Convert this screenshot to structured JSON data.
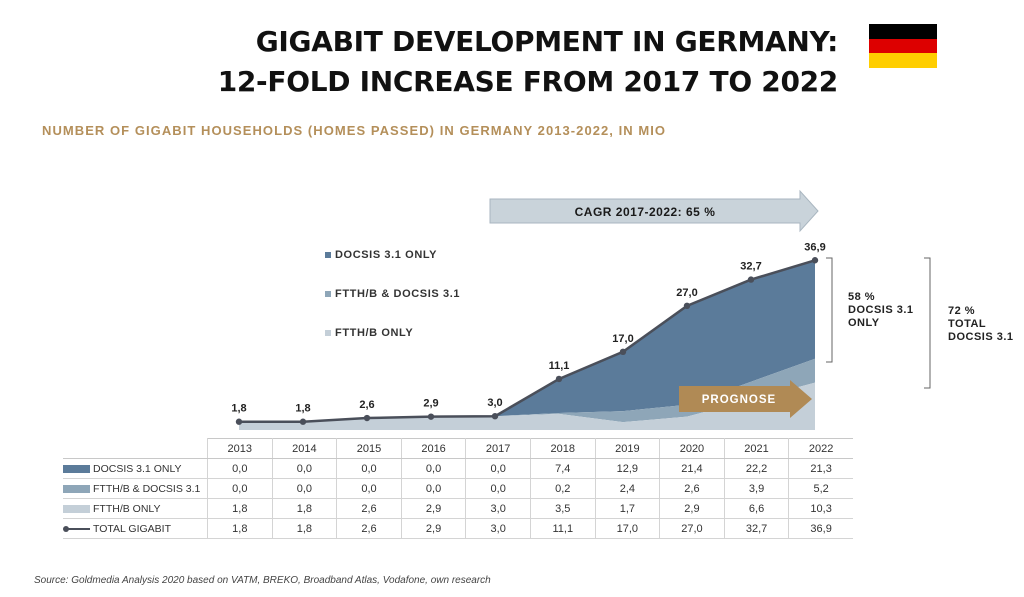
{
  "title": {
    "line1": "GIGABIT DEVELOPMENT IN GERMANY:",
    "line2": "12-FOLD INCREASE FROM 2017 TO 2022"
  },
  "subtitle": "NUMBER OF GIGABIT HOUSEHOLDS (HOMES PASSED) IN GERMANY 2013-2022, IN MIO",
  "source": "Source: Goldmedia Analysis 2020 based on VATM, BREKO, Broadband Atlas, Vodafone, own research",
  "flag_colors": [
    "#000000",
    "#dd0000",
    "#ffce00"
  ],
  "annotations": {
    "cagr": "CAGR 2017-2022: 65 %",
    "prognose": "PROGNOSE",
    "docsis_share": [
      "58 %",
      "DOCSIS 3.1",
      "ONLY"
    ],
    "total_docsis_share": [
      "72 %",
      "TOTAL",
      "DOCSIS 3.1"
    ]
  },
  "colors": {
    "docsis_only": "#5b7b9a",
    "ftth_docsis": "#8ea6b8",
    "ftth_only": "#c4cfd8",
    "total_line": "#4a4f5a",
    "cagr_arrow": "#c9d3da",
    "prognose_arrow": "#b08a55",
    "subtitle": "#b48f5a"
  },
  "chart_data": {
    "type": "area",
    "categories": [
      "2013",
      "2014",
      "2015",
      "2016",
      "2017",
      "2018",
      "2019",
      "2020",
      "2021",
      "2022"
    ],
    "series": [
      {
        "name": "DOCSIS 3.1 ONLY",
        "table_label": "DOCSIS 3.1 ONLY",
        "values": [
          0.0,
          0.0,
          0.0,
          0.0,
          0.0,
          7.4,
          12.9,
          21.4,
          22.2,
          21.3
        ],
        "labels": [
          "0,0",
          "0,0",
          "0,0",
          "0,0",
          "0,0",
          "7,4",
          "12,9",
          "21,4",
          "22,2",
          "21,3"
        ]
      },
      {
        "name": "FTTH/B & DOCSIS 3.1",
        "table_label": "FTTH/B & DOCSIS 3.1",
        "values": [
          0.0,
          0.0,
          0.0,
          0.0,
          0.0,
          0.2,
          2.4,
          2.6,
          3.9,
          5.2
        ],
        "labels": [
          "0,0",
          "0,0",
          "0,0",
          "0,0",
          "0,0",
          "0,2",
          "2,4",
          "2,6",
          "3,9",
          "5,2"
        ]
      },
      {
        "name": "FTTH/B ONLY",
        "table_label": "FTTH/B ONLY",
        "values": [
          1.8,
          1.8,
          2.6,
          2.9,
          3.0,
          3.5,
          1.7,
          2.9,
          6.6,
          10.3
        ],
        "labels": [
          "1,8",
          "1,8",
          "2,6",
          "2,9",
          "3,0",
          "3,5",
          "1,7",
          "2,9",
          "6,6",
          "10,3"
        ]
      },
      {
        "name": "TOTAL GIGABIT",
        "table_label": "TOTAL GIGABIT",
        "values": [
          1.8,
          1.8,
          2.6,
          2.9,
          3.0,
          11.1,
          17.0,
          27.0,
          32.7,
          36.9
        ],
        "labels": [
          "1,8",
          "1,8",
          "2,6",
          "2,9",
          "3,0",
          "11,1",
          "17,0",
          "27,0",
          "32,7",
          "36,9"
        ]
      }
    ],
    "legend": [
      "DOCSIS 3.1 ONLY",
      "FTTH/B & DOCSIS 3.1",
      "FTTH/B ONLY"
    ],
    "legend_position": "top-left",
    "xlabel": "",
    "ylabel": "",
    "ylim": [
      0,
      40
    ],
    "grid": false
  }
}
